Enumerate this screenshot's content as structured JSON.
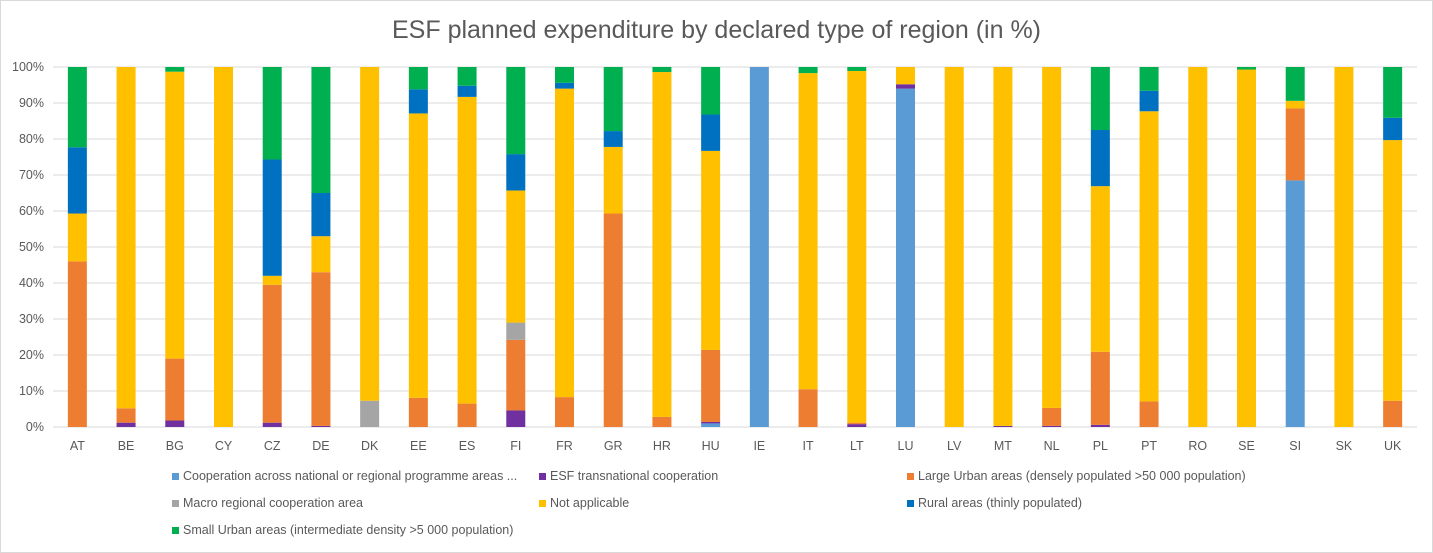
{
  "chart_data": {
    "type": "bar",
    "stacked": true,
    "title": "ESF planned expenditure by declared type of region (in %)",
    "xlabel": "",
    "ylabel": "",
    "ylim": [
      0,
      100
    ],
    "y_ticks": [
      "0%",
      "10%",
      "20%",
      "30%",
      "40%",
      "50%",
      "60%",
      "70%",
      "80%",
      "90%",
      "100%"
    ],
    "grid": true,
    "legend_position": "bottom",
    "categories": [
      "AT",
      "BE",
      "BG",
      "CY",
      "CZ",
      "DE",
      "DK",
      "EE",
      "ES",
      "FI",
      "FR",
      "GR",
      "HR",
      "HU",
      "IE",
      "IT",
      "LT",
      "LU",
      "LV",
      "MT",
      "NL",
      "PL",
      "PT",
      "RO",
      "SE",
      "SI",
      "SK",
      "UK"
    ],
    "series": [
      {
        "name": "Cooperation across national or regional programme areas ...",
        "color": "#5b9bd5",
        "values": [
          0,
          0,
          0,
          0,
          0,
          0,
          0,
          0,
          0,
          0,
          0,
          0,
          0,
          1.0,
          100,
          0,
          0,
          94.0,
          0,
          0,
          0,
          0,
          0,
          0,
          0,
          68.5,
          0,
          0
        ]
      },
      {
        "name": "ESF transnational cooperation",
        "color": "#7030a0",
        "values": [
          0,
          1.2,
          1.8,
          0,
          1.2,
          0.3,
          0,
          0,
          0,
          4.6,
          0,
          0,
          0,
          0.4,
          0,
          0,
          0.8,
          1.2,
          0,
          0.3,
          0.3,
          0.6,
          0,
          0,
          0,
          0,
          0,
          0
        ]
      },
      {
        "name": "Large Urban areas (densely populated >50 000 population)",
        "color": "#ed7d31",
        "values": [
          46.0,
          4.0,
          17.2,
          0,
          38.3,
          42.7,
          0,
          8.1,
          6.5,
          19.6,
          8.3,
          59.3,
          2.8,
          20.0,
          0,
          10.5,
          0.4,
          0,
          0,
          0,
          5.0,
          20.3,
          7.1,
          0,
          0,
          20.0,
          0,
          7.3
        ]
      },
      {
        "name": "Macro regional cooperation area",
        "color": "#a5a5a5",
        "values": [
          0,
          0,
          0,
          0,
          0,
          0,
          7.3,
          0,
          0,
          4.8,
          0,
          0,
          0,
          0,
          0,
          0,
          0,
          0,
          0,
          0,
          0,
          0,
          0,
          0,
          0,
          0,
          0,
          0
        ]
      },
      {
        "name": "Not applicable",
        "color": "#ffc000",
        "values": [
          13.3,
          94.8,
          79.7,
          100,
          2.5,
          10.0,
          92.7,
          79.0,
          85.2,
          36.7,
          85.7,
          18.5,
          95.8,
          55.3,
          0,
          87.8,
          97.7,
          4.8,
          100,
          99.7,
          94.7,
          46.0,
          80.6,
          100,
          99.3,
          2.1,
          100,
          72.4
        ]
      },
      {
        "name": "Rural areas (thinly populated)",
        "color": "#0070c0",
        "values": [
          18.4,
          0,
          0,
          0,
          32.3,
          12.0,
          0,
          6.7,
          3.1,
          10.1,
          1.6,
          4.4,
          0,
          10.1,
          0,
          0,
          0,
          0,
          0,
          0,
          0,
          15.6,
          5.7,
          0,
          0,
          0,
          0,
          6.2
        ]
      },
      {
        "name": "Small Urban areas (intermediate density >5 000 population)",
        "color": "#00b050",
        "values": [
          22.3,
          0,
          1.3,
          0,
          25.7,
          35.0,
          0,
          6.2,
          5.2,
          24.2,
          4.4,
          17.8,
          1.4,
          13.2,
          0,
          1.7,
          1.1,
          0,
          0,
          0,
          0,
          17.5,
          6.6,
          0,
          0.7,
          9.4,
          0,
          14.1
        ]
      }
    ]
  }
}
